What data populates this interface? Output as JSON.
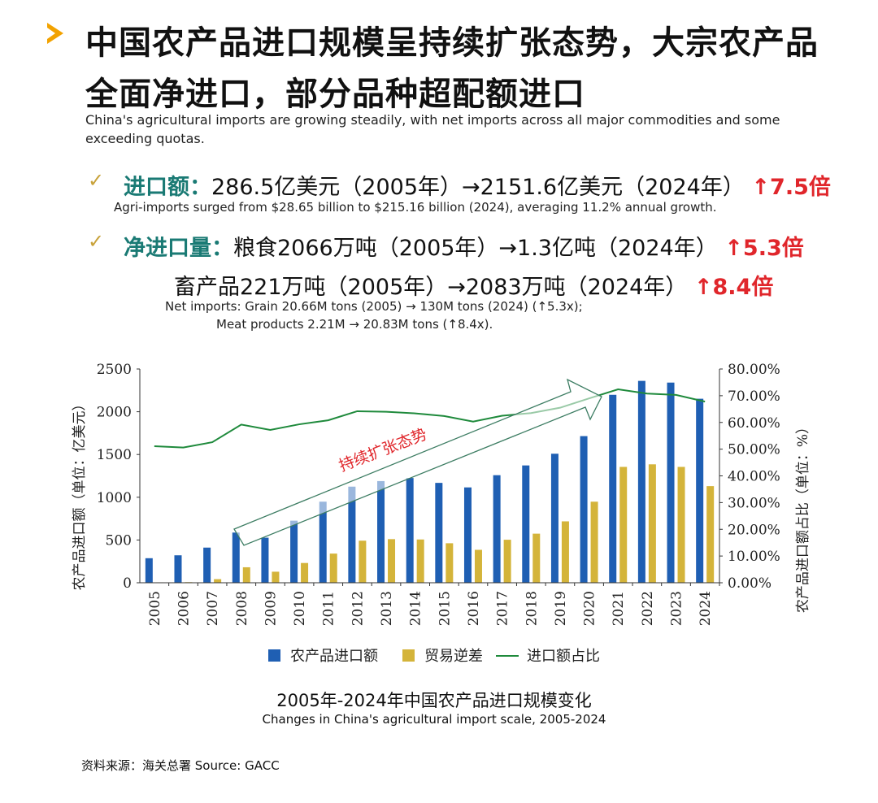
{
  "header": {
    "title_line1": "中国农产品进口规模呈持续扩张态势，大宗农产品",
    "title_line2": "全面净进口，部分品种超配额进口",
    "subtitle_en_line1": "China's agricultural imports are growing steadily, with net imports across all major commodities and some",
    "subtitle_en_line2": "exceeding quotas."
  },
  "kpis": {
    "check_icon": "✓",
    "import_value": {
      "label": "进口额：",
      "text": "286.5亿美元（2005年）→2151.6亿美元（2024年）",
      "growth": "↑7.5倍",
      "en": "Agri-imports surged from $28.65 billion to $215.16 billion (2024),  averaging 11.2% annual growth."
    },
    "net_import": {
      "label": "净进口量：",
      "text": "粮食2066万吨（2005年）→1.3亿吨（2024年）",
      "growth": "↑5.3倍",
      "text2": "畜产品221万吨（2005年）→2083万吨（2024年）",
      "growth2": "↑8.4倍",
      "en1": "Net imports: Grain 20.66M tons (2005) → 130M tons (2024) (↑5.3x);",
      "en2": "Meat products 2.21M → 20.83M tons (↑8.4x)."
    }
  },
  "chart_data": {
    "type": "bar",
    "title": "2005年-2024年中国农产品进口规模变化",
    "subtitle": "Changes in China's agricultural import scale, 2005-2024",
    "categories": [
      "2005",
      "2006",
      "2007",
      "2008",
      "2009",
      "2010",
      "2011",
      "2012",
      "2013",
      "2014",
      "2015",
      "2016",
      "2017",
      "2018",
      "2019",
      "2020",
      "2021",
      "2022",
      "2023",
      "2024"
    ],
    "series": [
      {
        "name": "农产品进口额",
        "kind": "bar",
        "axis": "left",
        "color": "#1f5fb3",
        "values": [
          287,
          321,
          411,
          587,
          527,
          726,
          948,
          1124,
          1189,
          1225,
          1168,
          1115,
          1258,
          1372,
          1509,
          1715,
          2198,
          2361,
          2341,
          2152
        ]
      },
      {
        "name": "贸易逆差",
        "kind": "bar",
        "axis": "left",
        "color": "#d4b43a",
        "values": [
          5,
          7,
          42,
          181,
          129,
          231,
          341,
          492,
          510,
          506,
          462,
          385,
          503,
          574,
          718,
          948,
          1355,
          1385,
          1355,
          1130
        ]
      },
      {
        "name": "进口额占比",
        "kind": "line",
        "axis": "right",
        "color": "#1f8a3c",
        "values": [
          51.1,
          50.6,
          52.6,
          59.2,
          57.2,
          59.3,
          60.8,
          64.2,
          64.0,
          63.4,
          62.4,
          60.3,
          62.5,
          63.5,
          65.5,
          69.0,
          72.4,
          70.8,
          70.3,
          67.8
        ]
      }
    ],
    "ylabel": "农产品进口额（单位：亿美元）",
    "y2label": "农产品进口额占比（单位：%）",
    "ylim": [
      0,
      2500
    ],
    "yticks": [
      "0",
      "500",
      "1000",
      "1500",
      "2000",
      "2500"
    ],
    "y2lim": [
      0,
      80
    ],
    "y2ticks": [
      "0.00%",
      "10.00%",
      "20.00%",
      "30.00%",
      "40.00%",
      "50.00%",
      "60.00%",
      "70.00%",
      "80.00%"
    ],
    "annotation": "持续扩张态势",
    "annotation_color": "#e0262b",
    "arrow_color": "#3d7d63",
    "legend": [
      "农产品进口额",
      "贸易逆差",
      "进口额占比"
    ],
    "legend_position": "bottom"
  },
  "source": "资料来源：海关总署  Source:  GACC"
}
